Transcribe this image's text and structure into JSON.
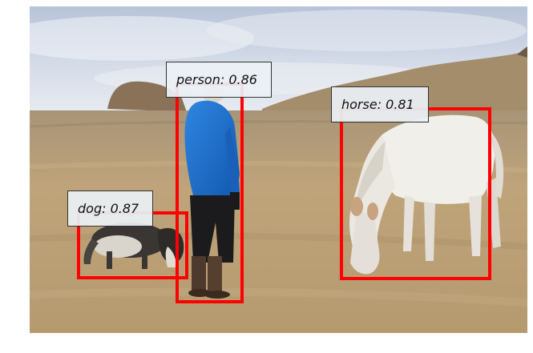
{
  "image": {
    "scene": "field with a person, a dog and a white horse",
    "box_color": "#ff0000",
    "label_bg": "#eef2f6"
  },
  "detections": [
    {
      "label": "person: 0.86"
    },
    {
      "label": "horse: 0.81"
    },
    {
      "label": "dog: 0.87"
    }
  ]
}
